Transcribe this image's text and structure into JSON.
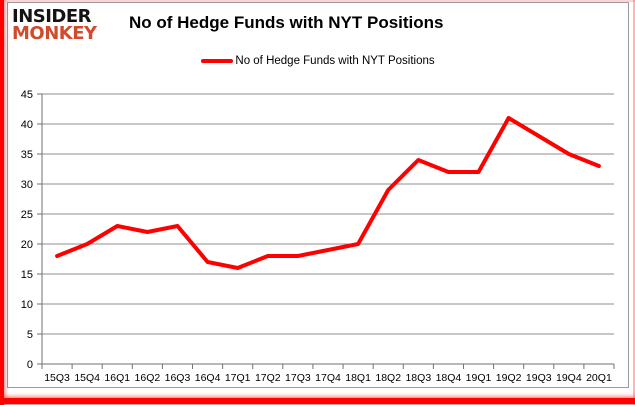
{
  "logo": {
    "line1": "INSIDER",
    "line2": "MONKEY"
  },
  "header": {
    "title": "No of Hedge Funds with NYT Positions"
  },
  "legend": {
    "label": "No of Hedge Funds with NYT Positions"
  },
  "colors": {
    "line": "#ff0000",
    "grid": "#8f8f8f",
    "axis": "#707070",
    "text": "#000000",
    "logo_monkey": "#d14a2b",
    "border_accent": "#ff0000",
    "card_border": "#9b9b9b"
  },
  "chart_data": {
    "type": "line",
    "title": "No of Hedge Funds with NYT Positions",
    "categories": [
      "15Q3",
      "15Q4",
      "16Q1",
      "16Q2",
      "16Q3",
      "16Q4",
      "17Q1",
      "17Q2",
      "17Q3",
      "17Q4",
      "18Q1",
      "18Q2",
      "18Q3",
      "18Q4",
      "19Q1",
      "19Q2",
      "19Q3",
      "19Q4",
      "20Q1"
    ],
    "series": [
      {
        "name": "No of Hedge Funds with NYT Positions",
        "color": "#ff0000",
        "values": [
          18,
          20,
          23,
          22,
          23,
          17,
          16,
          18,
          18,
          19,
          20,
          29,
          34,
          32,
          32,
          41,
          38,
          35,
          33
        ]
      }
    ],
    "xlabel": "",
    "ylabel": "",
    "ylim": [
      0,
      45
    ],
    "ytick_step": 5,
    "grid": "horizontal",
    "legend_position": "top"
  }
}
